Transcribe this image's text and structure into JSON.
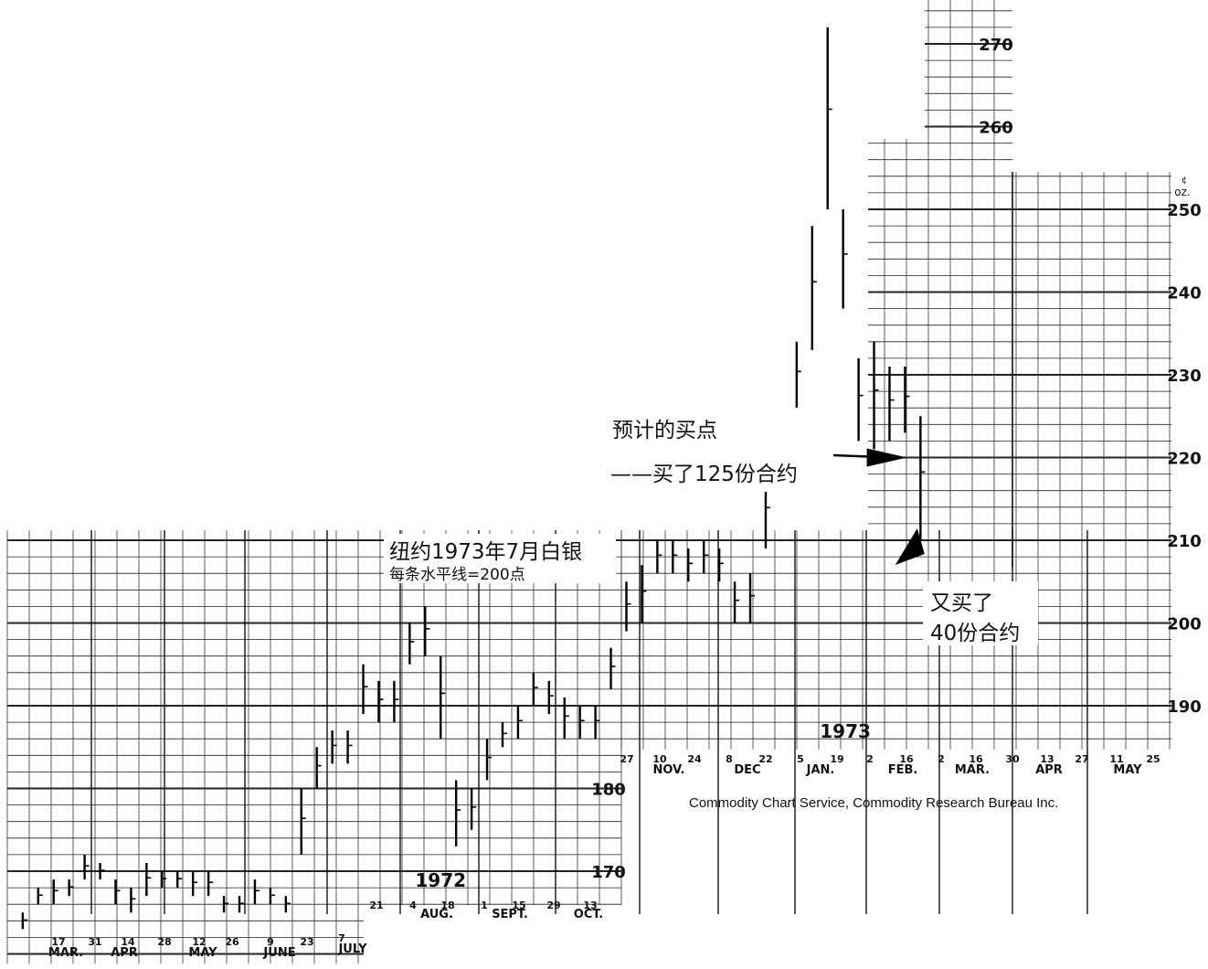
{
  "chart_data": {
    "type": "bar",
    "title": "纽约1973年7月白银",
    "subtitle": "每条水平线=200点",
    "units_label": "¢/oz.",
    "ylim": [
      163,
      274
    ],
    "grid": true,
    "y_ticks": [
      {
        "value": 170,
        "label": "170"
      },
      {
        "value": 180,
        "label": "180"
      },
      {
        "value": 190,
        "label": "190"
      },
      {
        "value": 200,
        "label": "200"
      },
      {
        "value": 210,
        "label": "210"
      },
      {
        "value": 220,
        "label": "220"
      },
      {
        "value": 230,
        "label": "230"
      },
      {
        "value": 240,
        "label": "240"
      },
      {
        "value": 250,
        "label": "250"
      },
      {
        "value": 260,
        "label": "260"
      },
      {
        "value": 270,
        "label": "270"
      }
    ],
    "year_labels": [
      {
        "label": "1972",
        "date": "1972-09-10",
        "value": 169
      },
      {
        "label": "1973",
        "date": "1973-03-12",
        "value": 187
      }
    ],
    "months": [
      "MAR.",
      "APR",
      "MAY",
      "JUNE",
      "JULY",
      "AUG.",
      "SEPT.",
      "OCT.",
      "NOV.",
      "DEC",
      "JAN.",
      "FEB.",
      "MAR.",
      "APR",
      "MAY"
    ],
    "day_ticks": [
      "17",
      "31",
      "14",
      "28",
      "12",
      "26",
      "9",
      "23",
      "7",
      "21",
      "4",
      "18",
      "1",
      "15",
      "29",
      "13",
      "27",
      "10",
      "24",
      "8",
      "22",
      "5",
      "19",
      "2",
      "16",
      "2",
      "16",
      "30",
      "13",
      "27",
      "11",
      "25"
    ],
    "series": [
      {
        "type": "weekly-high-low",
        "points": [
          {
            "date": "1972-03-05",
            "low": 163,
            "high": 165
          },
          {
            "date": "1972-03-12",
            "low": 166,
            "high": 168
          },
          {
            "date": "1972-03-19",
            "low": 166,
            "high": 169
          },
          {
            "date": "1972-03-26",
            "low": 167,
            "high": 169
          },
          {
            "date": "1972-04-02",
            "low": 169,
            "high": 172
          },
          {
            "date": "1972-04-09",
            "low": 169,
            "high": 171
          },
          {
            "date": "1972-04-16",
            "low": 166,
            "high": 169
          },
          {
            "date": "1972-04-23",
            "low": 165,
            "high": 168
          },
          {
            "date": "1972-04-30",
            "low": 167,
            "high": 171
          },
          {
            "date": "1972-05-07",
            "low": 168,
            "high": 170
          },
          {
            "date": "1972-05-14",
            "low": 168,
            "high": 170
          },
          {
            "date": "1972-05-21",
            "low": 167,
            "high": 170
          },
          {
            "date": "1972-05-28",
            "low": 167,
            "high": 170
          },
          {
            "date": "1972-06-04",
            "low": 165,
            "high": 167
          },
          {
            "date": "1972-06-11",
            "low": 165,
            "high": 167
          },
          {
            "date": "1972-06-18",
            "low": 166,
            "high": 169
          },
          {
            "date": "1972-06-25",
            "low": 166,
            "high": 168
          },
          {
            "date": "1972-07-02",
            "low": 165,
            "high": 167
          },
          {
            "date": "1972-07-09",
            "low": 172,
            "high": 180
          },
          {
            "date": "1972-07-16",
            "low": 180,
            "high": 185
          },
          {
            "date": "1972-07-23",
            "low": 183,
            "high": 187
          },
          {
            "date": "1972-07-30",
            "low": 183,
            "high": 187
          },
          {
            "date": "1972-08-06",
            "low": 189,
            "high": 195
          },
          {
            "date": "1972-08-13",
            "low": 188,
            "high": 193
          },
          {
            "date": "1972-08-20",
            "low": 188,
            "high": 193
          },
          {
            "date": "1972-08-27",
            "low": 195,
            "high": 200
          },
          {
            "date": "1972-09-03",
            "low": 196,
            "high": 202
          },
          {
            "date": "1972-09-10",
            "low": 186,
            "high": 196
          },
          {
            "date": "1972-09-17",
            "low": 173,
            "high": 181
          },
          {
            "date": "1972-09-24",
            "low": 175,
            "high": 180
          },
          {
            "date": "1972-10-01",
            "low": 181,
            "high": 186
          },
          {
            "date": "1972-10-08",
            "low": 185,
            "high": 188
          },
          {
            "date": "1972-10-15",
            "low": 186,
            "high": 190
          },
          {
            "date": "1972-10-22",
            "low": 190,
            "high": 194
          },
          {
            "date": "1972-10-29",
            "low": 189,
            "high": 193
          },
          {
            "date": "1972-11-05",
            "low": 186,
            "high": 191
          },
          {
            "date": "1972-11-12",
            "low": 186,
            "high": 190
          },
          {
            "date": "1972-11-19",
            "low": 186,
            "high": 190
          },
          {
            "date": "1972-11-26",
            "low": 192,
            "high": 197
          },
          {
            "date": "1972-12-03",
            "low": 199,
            "high": 205
          },
          {
            "date": "1972-12-10",
            "low": 200,
            "high": 207
          },
          {
            "date": "1972-12-17",
            "low": 206,
            "high": 210
          },
          {
            "date": "1972-12-24",
            "low": 206,
            "high": 210
          },
          {
            "date": "1972-12-31",
            "low": 205,
            "high": 209
          },
          {
            "date": "1973-01-07",
            "low": 206,
            "high": 210
          },
          {
            "date": "1973-01-14",
            "low": 205,
            "high": 209
          },
          {
            "date": "1973-01-21",
            "low": 200,
            "high": 205
          },
          {
            "date": "1973-01-28",
            "low": 200,
            "high": 206
          },
          {
            "date": "1973-02-04",
            "low": 209,
            "high": 218
          },
          {
            "date": "1973-02-11",
            "low": 219,
            "high": 225
          },
          {
            "date": "1973-02-18",
            "low": 226,
            "high": 234
          },
          {
            "date": "1973-02-25",
            "low": 233,
            "high": 248
          },
          {
            "date": "1973-03-04",
            "low": 250,
            "high": 272
          },
          {
            "date": "1973-03-11",
            "low": 238,
            "high": 250
          },
          {
            "date": "1973-03-18",
            "low": 222,
            "high": 232
          },
          {
            "date": "1973-03-25",
            "low": 221,
            "high": 234
          },
          {
            "date": "1973-04-01",
            "low": 222,
            "high": 231
          },
          {
            "date": "1973-04-08",
            "low": 223,
            "high": 231
          },
          {
            "date": "1973-04-15",
            "low": 210,
            "high": 225
          }
        ]
      }
    ],
    "annotations": [
      {
        "text": "预计的买点",
        "target": {
          "date": "1973-03-30",
          "value": 220
        }
      },
      {
        "text": "——买了125份合约",
        "target": {
          "date": "1973-03-30",
          "value": 220
        }
      },
      {
        "text": "又买了",
        "target": {
          "date": "1973-04-16",
          "value": 211
        }
      },
      {
        "text": "40份合约",
        "target": {
          "date": "1973-04-16",
          "value": 211
        }
      }
    ]
  },
  "credit": "Commodity Chart Service, Commodity Research Bureau Inc."
}
